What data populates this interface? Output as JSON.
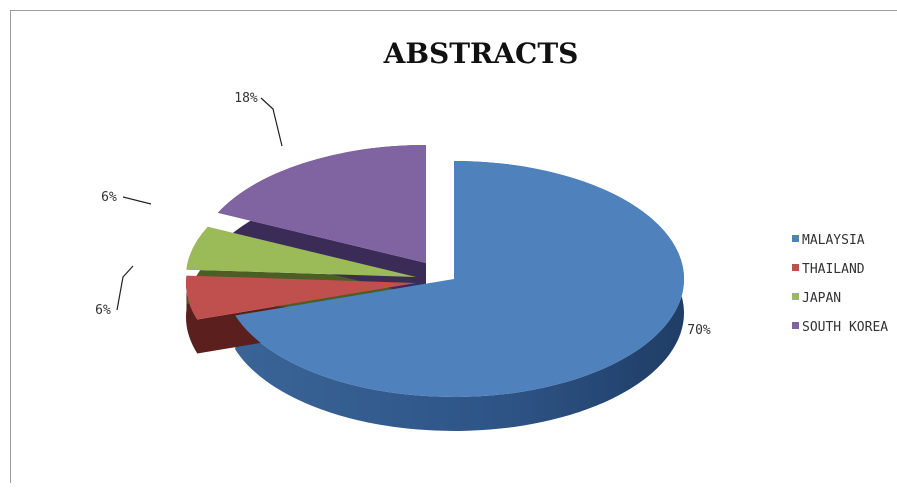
{
  "chart_data": {
    "type": "pie",
    "title": "ABSTRACTS",
    "three_d": true,
    "exploded": true,
    "legend_position": "right",
    "categories": [
      "MALAYSIA",
      "THAILAND",
      "JAPAN",
      "SOUTH KOREA"
    ],
    "values": [
      70,
      6,
      6,
      18
    ],
    "labels": [
      "70%",
      "6%",
      "6%",
      "18%"
    ],
    "colors": [
      "#4f81bd",
      "#c0504d",
      "#9bbb59",
      "#8064a2"
    ]
  }
}
